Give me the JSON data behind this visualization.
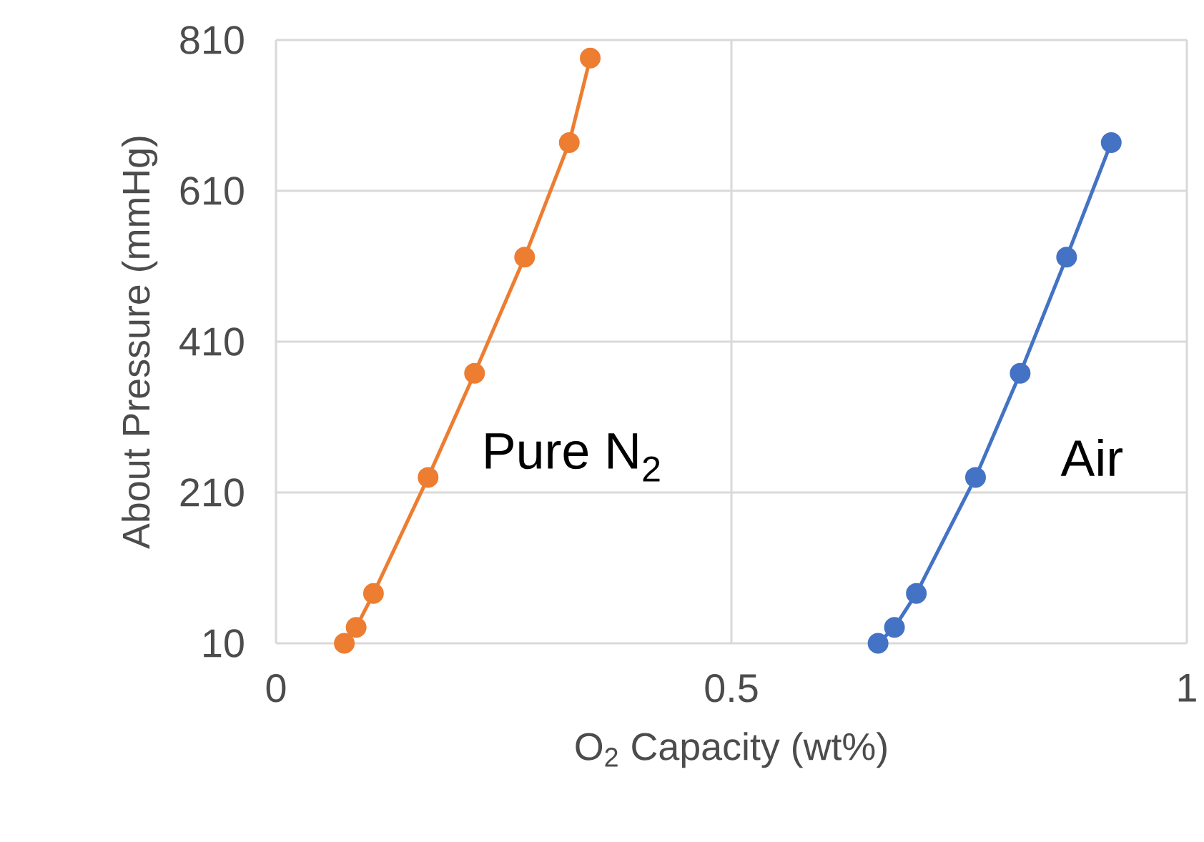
{
  "chart_data": {
    "type": "line",
    "xlabel": "O$_{2}$ Capacity (wt%)",
    "ylabel": "About Pressure (mmHg)",
    "xlim": [
      0,
      1
    ],
    "xticks": [
      0,
      0.5,
      1
    ],
    "ylim": [
      10,
      810
    ],
    "yticks": [
      10,
      210,
      410,
      610,
      810
    ],
    "grid": true,
    "marker": "circle",
    "line_style": "solid",
    "series": [
      {
        "name": "Pure N$_{2}$",
        "color": "#ed7d31",
        "x": [
          0.075,
          0.088,
          0.107,
          0.167,
          0.218,
          0.273,
          0.322,
          0.345
        ],
        "values": [
          10,
          31,
          76,
          230,
          368,
          522,
          674,
          786
        ]
      },
      {
        "name": "Air",
        "color": "#4472c4",
        "x": [
          0.661,
          0.679,
          0.703,
          0.768,
          0.817,
          0.868,
          0.917
        ],
        "values": [
          10,
          31,
          76,
          230,
          368,
          522,
          674
        ]
      }
    ]
  }
}
